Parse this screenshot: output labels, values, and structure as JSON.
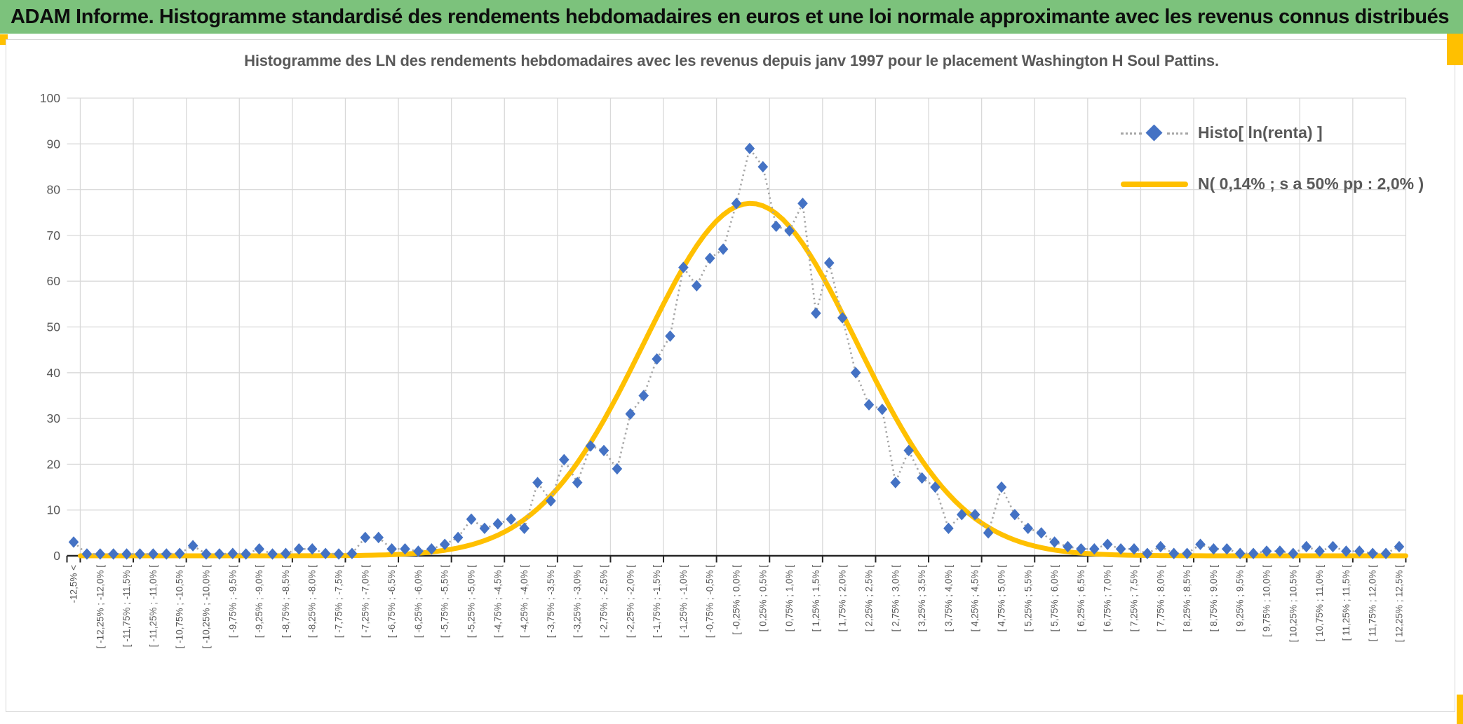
{
  "header": {
    "title": "ADAM Informe. Histogramme standardisé des rendements hebdomadaires en euros et une loi normale approximante avec les revenus connus distribués"
  },
  "chart": {
    "title": "Histogramme des LN des rendements hebdomadaires avec les revenus depuis janv 1997 pour le placement Washington H Soul Pattins.",
    "legend": [
      {
        "label": "Histo[ ln(renta) ]",
        "marker": "blue-diamond-dotted-line"
      },
      {
        "label": "N( 0,14% ; s a 50% pp : 2,0% )",
        "marker": "yellow-solid-line"
      }
    ]
  },
  "chart_data": {
    "type": "line",
    "title": "Histogramme des LN des rendements hebdomadaires avec les revenus depuis janv 1997 pour le placement Washington H Soul Pattins.",
    "xlabel": "",
    "ylabel": "",
    "ylim": [
      0,
      100
    ],
    "y_ticks": [
      0,
      10,
      20,
      30,
      40,
      50,
      60,
      70,
      80,
      90,
      100
    ],
    "grid": true,
    "legend_position": "top-right-inside",
    "bin_width_pct": 0.25,
    "x_range_pct": [
      -12.5,
      12.5
    ],
    "x_tick_labels_every_n_bins": 2,
    "x_tick_labels": [
      "-12,5% <",
      "[ -12,25% ; -12,0% [",
      "[ -11,75% ; -11,5% [",
      "[ -11,25% ; -11,0% [",
      "[ -10,75% ; -10,5% [",
      "[ -10,25% ; -10,0% [",
      "[ -9,75% ; -9,5% [",
      "[ -9,25% ; -9,0% [",
      "[ -8,75% ; -8,5% [",
      "[ -8,25% ; -8,0% [",
      "[ -7,75% ; -7,5% [",
      "[ -7,25% ; -7,0% [",
      "[ -6,75% ; -6,5% [",
      "[ -6,25% ; -6,0% [",
      "[ -5,75% ; -5,5% [",
      "[ -5,25% ; -5,0% [",
      "[ -4,75% ; -4,5% [",
      "[ -4,25% ; -4,0% [",
      "[ -3,75% ; -3,5% [",
      "[ -3,25% ; -3,0% [",
      "[ -2,75% ; -2,5% [",
      "[ -2,25% ; -2,0% [",
      "[ -1,75% ; -1,5% [",
      "[ -1,25% ; -1,0% [",
      "[ -0,75% ; -0,5% [",
      "[ -0,25% ; 0,0% [",
      "[ 0,25% ; 0,5% [",
      "[ 0,75% ; 1,0% [",
      "[ 1,25% ; 1,5% [",
      "[ 1,75% ; 2,0% [",
      "[ 2,25% ; 2,5% [",
      "[ 2,75% ; 3,0% [",
      "[ 3,25% ; 3,5% [",
      "[ 3,75% ; 4,0% [",
      "[ 4,25% ; 4,5% [",
      "[ 4,75% ; 5,0% [",
      "[ 5,25% ; 5,5% [",
      "[ 5,75% ; 6,0% [",
      "[ 6,25% ; 6,5% [",
      "[ 6,75% ; 7,0% [",
      "[ 7,25% ; 7,5% [",
      "[ 7,75% ; 8,0% [",
      "[ 8,25% ; 8,5% [",
      "[ 8,75% ; 9,0% [",
      "[ 9,25% ; 9,5% [",
      "[ 9,75% ; 10,0% [",
      "[ 10,25% ; 10,5% [",
      "[ 10,75% ; 11,0% [",
      "[ 11,25% ; 11,5% [",
      "[ 11,75% ; 12,0% [",
      "[ 12,25% ; 12,5% ["
    ],
    "series": [
      {
        "name": "Histo[ ln(renta) ]",
        "style": "dotted-line-with-diamond-markers",
        "values": [
          3,
          0.4,
          0.4,
          0.4,
          0.4,
          0.4,
          0.4,
          0.4,
          0.5,
          2.2,
          0.4,
          0.4,
          0.5,
          0.4,
          1.5,
          0.4,
          0.5,
          1.5,
          1.5,
          0.5,
          0.4,
          0.5,
          4,
          4,
          1.5,
          1.5,
          1,
          1.5,
          2.5,
          4,
          8,
          6,
          7,
          8,
          6,
          16,
          12,
          21,
          16,
          24,
          23,
          19,
          31,
          35,
          43,
          48,
          63,
          59,
          65,
          67,
          77,
          89,
          85,
          72,
          71,
          77,
          53,
          64,
          52,
          40,
          33,
          32,
          16,
          23,
          17,
          15,
          6,
          9,
          9,
          5,
          15,
          9,
          6,
          5,
          3,
          2,
          1.5,
          1.5,
          2.5,
          1.5,
          1.5,
          0.5,
          2,
          0.5,
          0.5,
          2.5,
          1.5,
          1.5,
          0.5,
          0.5,
          1,
          1,
          0.5,
          2,
          1,
          2,
          1,
          1,
          0.5,
          0.5,
          2
        ]
      },
      {
        "name": "N( 0,14% ; s a 50% pp : 2,0% )",
        "style": "smooth-curve",
        "curve": {
          "shape": "gaussian",
          "mean_pct": 0.14,
          "sigma_pct": 2.0,
          "peak": 77
        }
      }
    ]
  },
  "colors": {
    "header_green": "#7CC27C",
    "accent_orange": "#FFC000",
    "diamond_blue": "#4472C4",
    "dotted_gray": "#a6a6a6",
    "curve_yellow": "#FFC000",
    "gridline_gray": "#d9d9d9",
    "axis_black": "#262626",
    "text_gray": "#595959"
  }
}
